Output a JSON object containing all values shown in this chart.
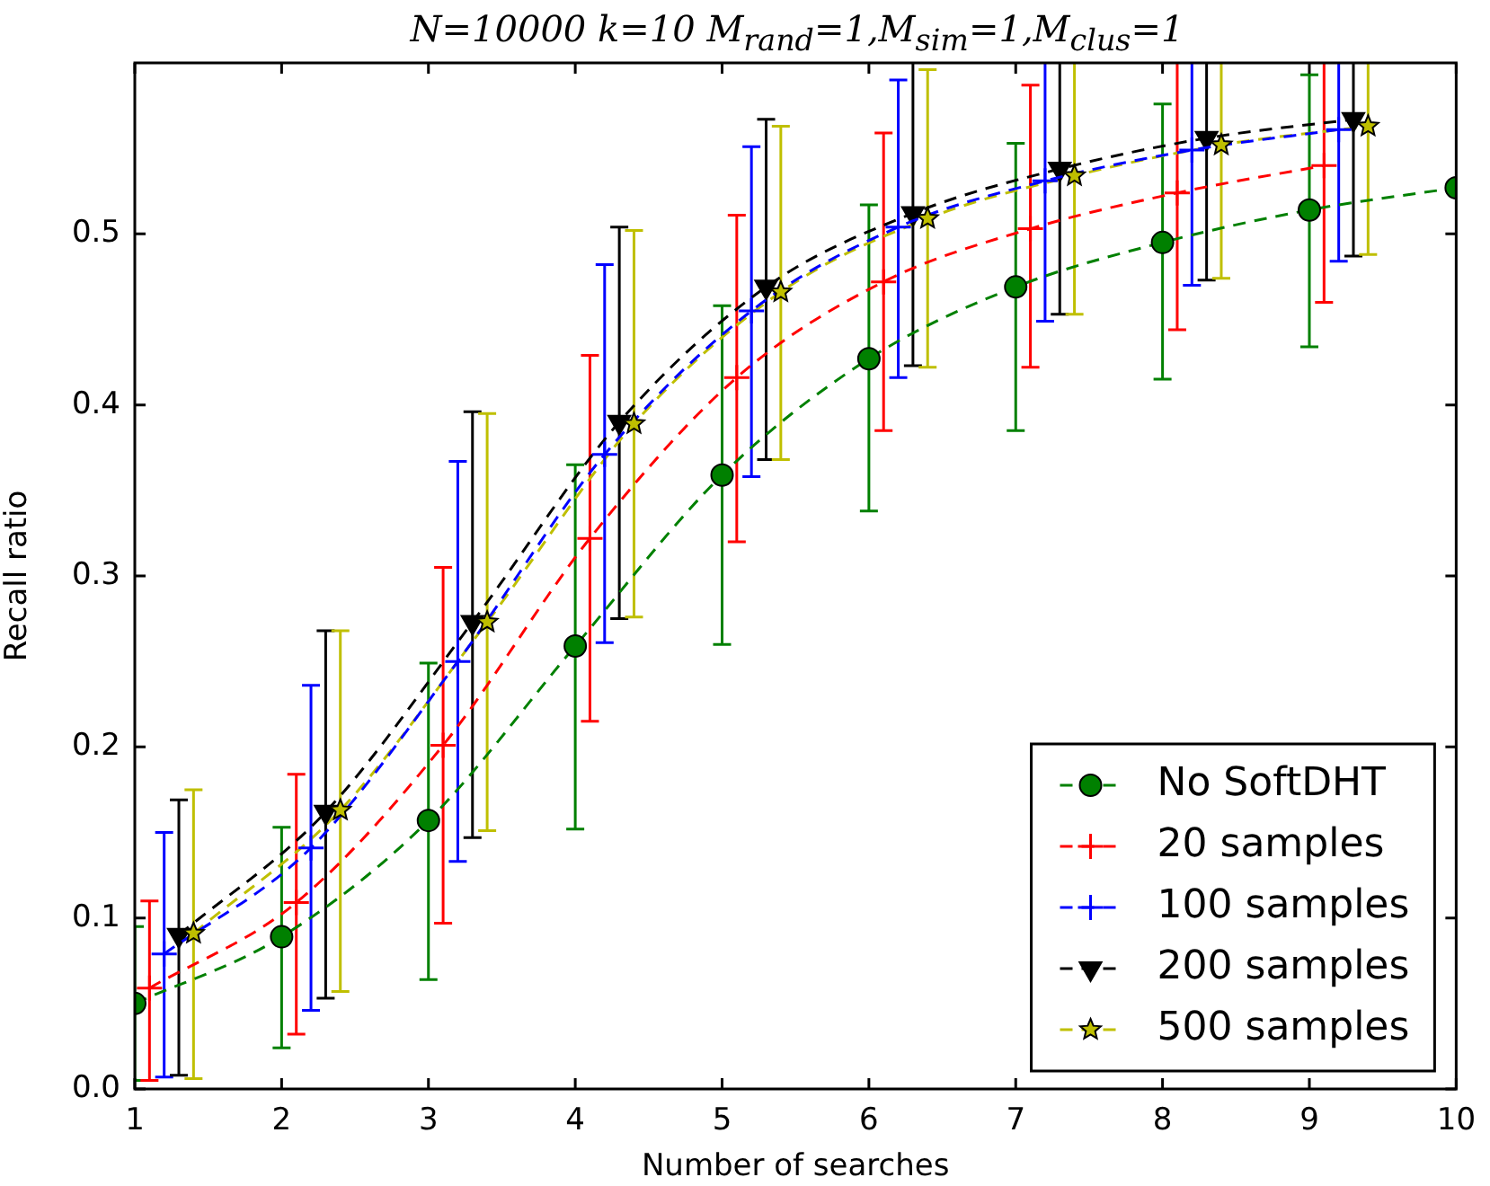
{
  "chart_data": {
    "type": "line",
    "title": "N=10000 k=10 M$_{rand}$=1,M$_{sim}$=1,M$_{clus}$=1",
    "xlabel": "Number of searches",
    "ylabel": "Recall ratio",
    "xlim": [
      1,
      10
    ],
    "xticks": [
      1,
      2,
      3,
      4,
      5,
      6,
      7,
      8,
      9,
      10
    ],
    "ylim": [
      0,
      0.6
    ],
    "yticks": [
      {
        "value": 0,
        "label": "0.0"
      },
      {
        "value": 0.1,
        "label": "0.1"
      },
      {
        "value": 0.2,
        "label": "0.2"
      },
      {
        "value": 0.3,
        "label": "0.3"
      },
      {
        "value": 0.4,
        "label": "0.4"
      },
      {
        "value": 0.5,
        "label": "0.5"
      }
    ],
    "legend": "bottom right",
    "line_style": "dashed",
    "series": [
      {
        "name": "No SoftDHT",
        "color": "#008000",
        "marker": "circle",
        "x": [
          1,
          2,
          3,
          4,
          5,
          6,
          7,
          8,
          9,
          10
        ],
        "values": [
          0.05,
          0.089,
          0.157,
          0.259,
          0.359,
          0.427,
          0.469,
          0.495,
          0.514,
          0.527
        ],
        "errors": [
          [
            0.005,
            0.095
          ],
          [
            0.024,
            0.153
          ],
          [
            0.064,
            0.249
          ],
          [
            0.152,
            0.365
          ],
          [
            0.26,
            0.458
          ],
          [
            0.338,
            0.517
          ],
          [
            0.385,
            0.553
          ],
          [
            0.415,
            0.576
          ],
          [
            0.434,
            0.593
          ],
          null
        ]
      },
      {
        "name": "20 samples",
        "color": "#ff0000",
        "marker": "cross",
        "x": [
          1.1,
          2.1,
          3.1,
          4.1,
          5.1,
          6.1,
          7.1,
          8.1,
          9.1
        ],
        "values": [
          0.059,
          0.109,
          0.201,
          0.322,
          0.416,
          0.472,
          0.503,
          0.524,
          0.54
        ],
        "errors": [
          [
            0.005,
            0.11
          ],
          [
            0.032,
            0.184
          ],
          [
            0.097,
            0.305
          ],
          [
            0.215,
            0.429
          ],
          [
            0.32,
            0.511
          ],
          [
            0.385,
            0.559
          ],
          [
            0.422,
            0.587
          ],
          0.08,
          0.08
        ]
      },
      {
        "name": "100 samples",
        "color": "#0000ff",
        "marker": "cross",
        "x": [
          1.2,
          2.2,
          3.2,
          4.2,
          5.2,
          6.2,
          7.2,
          8.2,
          9.2
        ],
        "values": [
          0.079,
          0.141,
          0.25,
          0.371,
          0.455,
          0.504,
          0.531,
          0.549,
          0.561
        ],
        "errors": [
          [
            0.007,
            0.15
          ],
          [
            0.046,
            0.236
          ],
          [
            0.133,
            0.367
          ],
          [
            0.261,
            0.482
          ],
          [
            0.358,
            0.551
          ],
          [
            0.416,
            0.59
          ],
          0.082,
          0.079,
          0.077
        ]
      },
      {
        "name": "200 samples",
        "color": "#000000",
        "marker": "triangle",
        "x": [
          1.3,
          2.3,
          3.3,
          4.3,
          5.3,
          6.3,
          7.3,
          8.3,
          9.3
        ],
        "values": [
          0.09,
          0.162,
          0.273,
          0.39,
          0.469,
          0.512,
          0.538,
          0.556,
          0.567
        ],
        "errors": [
          [
            0.008,
            0.169
          ],
          [
            0.053,
            0.268
          ],
          [
            0.147,
            0.396
          ],
          [
            0.275,
            0.504
          ],
          [
            0.368,
            0.567
          ],
          0.089,
          0.085,
          0.083,
          0.08
        ]
      },
      {
        "name": "500 samples",
        "color": "#bfbf00",
        "marker": "star",
        "x": [
          1.4,
          2.4,
          3.4,
          4.4,
          5.4,
          6.4,
          7.4,
          8.4,
          9.4
        ],
        "values": [
          0.091,
          0.163,
          0.273,
          0.389,
          0.466,
          0.509,
          0.534,
          0.552,
          0.563
        ],
        "errors": [
          [
            0.006,
            0.175
          ],
          [
            0.057,
            0.268
          ],
          [
            0.151,
            0.395
          ],
          [
            0.276,
            0.502
          ],
          [
            0.368,
            0.563
          ],
          [
            0.422,
            0.596
          ],
          0.081,
          0.078,
          0.075
        ]
      }
    ]
  }
}
